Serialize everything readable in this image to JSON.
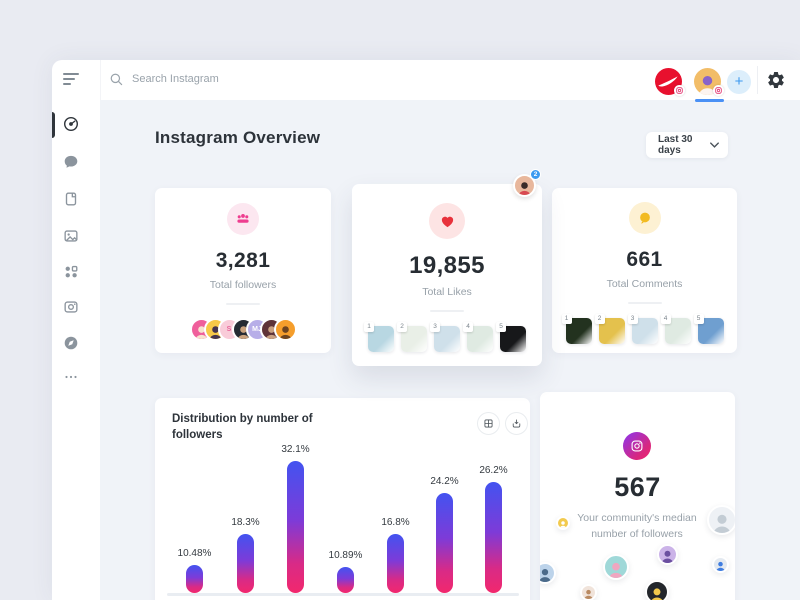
{
  "topbar": {
    "search_placeholder": "Search Instagram",
    "add_button_label": "+",
    "accounts": [
      {
        "name": "nike-account",
        "bg": "#e8102e",
        "active": false
      },
      {
        "name": "personal-account",
        "bg": "#f2bd68",
        "active": true
      }
    ],
    "active_underline_color": "#4a90f5"
  },
  "sidebar": {
    "items": [
      {
        "icon": "dashboard-icon",
        "active": true
      },
      {
        "icon": "comments-icon",
        "active": false
      },
      {
        "icon": "posts-icon",
        "active": false
      },
      {
        "icon": "media-icon",
        "active": false
      },
      {
        "icon": "apps-icon",
        "active": false
      },
      {
        "icon": "camera-icon",
        "active": false
      },
      {
        "icon": "explore-icon",
        "active": false
      },
      {
        "icon": "more-icon",
        "active": false
      }
    ]
  },
  "header": {
    "title": "Instagram Overview",
    "date_range": "Last 30 days"
  },
  "stat_cards": [
    {
      "value": "3,281",
      "label": "Total followers",
      "icon": "followers-icon",
      "icon_bg": "#fce7f0",
      "icon_color": "#ee3d8f",
      "avatars": [
        {
          "bg": "#ef5f9b",
          "fg": "#f7e3cf"
        },
        {
          "bg": "#f7c948",
          "fg": "#46354d"
        },
        {
          "bg": "#f9ccd9",
          "initials": "S",
          "fg": "#e8659a"
        },
        {
          "bg": "#252b33",
          "fg": "#c9a27e"
        },
        {
          "bg": "#b7aee8",
          "initials": "MJ",
          "fg": "#ffffff"
        },
        {
          "bg": "#5f3338",
          "fg": "#caa183"
        },
        {
          "bg": "#f59e2c",
          "fg": "#6e4420"
        }
      ]
    },
    {
      "value": "19,855",
      "label": "Total Likes",
      "icon": "heart-icon",
      "icon_bg": "#fde4e4",
      "icon_color": "#e8323c",
      "floating_badge": "2",
      "thumbs": [
        {
          "n": "1",
          "bg": "#b8d7e2"
        },
        {
          "n": "2",
          "bg": "#e9efe7"
        },
        {
          "n": "3",
          "bg": "#cfe0ea"
        },
        {
          "n": "4",
          "bg": "#dfeae2"
        },
        {
          "n": "5",
          "bg": "#17181a"
        }
      ]
    },
    {
      "value": "661",
      "label": "Total Comments",
      "icon": "comment-icon",
      "icon_bg": "#fdf1d3",
      "icon_color": "#f2bb22",
      "thumbs": [
        {
          "n": "1",
          "bg": "#23321f"
        },
        {
          "n": "2",
          "bg": "#e4c14d"
        },
        {
          "n": "3",
          "bg": "#cfe0ea"
        },
        {
          "n": "4",
          "bg": "#dfeae2"
        },
        {
          "n": "5",
          "bg": "#6f9fd0"
        }
      ]
    }
  ],
  "chart_data": {
    "type": "bar",
    "title": "Distribution by number of followers",
    "values": [
      10.48,
      18.3,
      32.1,
      10.89,
      16.8,
      24.2,
      26.2
    ],
    "value_labels": [
      "10.48%",
      "18.3%",
      "32.1%",
      "10.89%",
      "16.8%",
      "24.2%",
      "26.2%"
    ],
    "xlabel": "",
    "ylabel": "",
    "ylim": [
      0,
      35
    ],
    "grid": false,
    "legend": "none",
    "bar_gradient_top": "#4353f0",
    "bar_gradient_bottom": "#f2286d"
  },
  "chart_toolbar": {
    "buttons": [
      "grid-view-icon",
      "download-icon"
    ]
  },
  "median_card": {
    "icon": "instagram-icon",
    "value": "567",
    "caption": "Your community's median number of followers",
    "community_avatars": [
      {
        "bg": "#f2ca4e",
        "fg": "#ffffff"
      },
      {
        "bg": "#eef1f5",
        "fg": "#c3ccd4"
      },
      {
        "bg": "#cbb3e8",
        "fg": "#6b4fa0"
      },
      {
        "bg": "#9fd8d8",
        "fg": "#f0a6c0"
      },
      {
        "bg": "#e3e9f0",
        "fg": "#3f7de0"
      },
      {
        "bg": "#bcd3ea",
        "fg": "#4a6a8a"
      },
      {
        "bg": "#f0e3da",
        "fg": "#b98a62"
      },
      {
        "bg": "#23262b",
        "fg": "#f2c94c"
      }
    ]
  }
}
